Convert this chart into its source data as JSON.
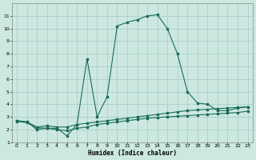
{
  "xlabel": "Humidex (Indice chaleur)",
  "xlim": [
    -0.5,
    23.5
  ],
  "ylim": [
    1,
    12
  ],
  "yticks": [
    1,
    2,
    3,
    4,
    5,
    6,
    7,
    8,
    9,
    10,
    11
  ],
  "xticks": [
    0,
    1,
    2,
    3,
    4,
    5,
    6,
    7,
    8,
    9,
    10,
    11,
    12,
    13,
    14,
    15,
    16,
    17,
    18,
    19,
    20,
    21,
    22,
    23
  ],
  "bg_color": "#cce8e0",
  "grid_color": "#aacfc8",
  "line_color": "#1a6b5a",
  "curve1_x": [
    0,
    1,
    2,
    3,
    4,
    5,
    6,
    7,
    8,
    9,
    10,
    11,
    12,
    13,
    14,
    15,
    16,
    17,
    18,
    19,
    20,
    21,
    22,
    23
  ],
  "curve1_y": [
    2.7,
    2.6,
    2.0,
    2.1,
    2.1,
    1.5,
    2.4,
    7.6,
    3.0,
    4.6,
    10.2,
    10.5,
    10.7,
    11.0,
    11.1,
    10.0,
    8.0,
    5.0,
    4.1,
    4.0,
    3.5,
    3.5,
    3.7,
    3.8
  ],
  "curve2_x": [
    0,
    1,
    2,
    3,
    4,
    5,
    6,
    7,
    8,
    9,
    10,
    11,
    12,
    13,
    14,
    15,
    16,
    17,
    18,
    19,
    20,
    21,
    22,
    23
  ],
  "curve2_y": [
    2.7,
    2.6,
    2.2,
    2.3,
    2.2,
    2.2,
    2.4,
    2.5,
    2.6,
    2.7,
    2.8,
    2.9,
    3.0,
    3.1,
    3.2,
    3.3,
    3.4,
    3.5,
    3.55,
    3.6,
    3.65,
    3.7,
    3.75,
    3.8
  ],
  "curve3_x": [
    0,
    1,
    2,
    3,
    4,
    5,
    6,
    7,
    8,
    9,
    10,
    11,
    12,
    13,
    14,
    15,
    16,
    17,
    18,
    19,
    20,
    21,
    22,
    23
  ],
  "curve3_y": [
    2.65,
    2.55,
    2.15,
    2.1,
    2.0,
    1.9,
    2.1,
    2.2,
    2.4,
    2.5,
    2.6,
    2.7,
    2.8,
    2.9,
    2.95,
    3.0,
    3.05,
    3.1,
    3.15,
    3.2,
    3.25,
    3.3,
    3.35,
    3.45
  ]
}
